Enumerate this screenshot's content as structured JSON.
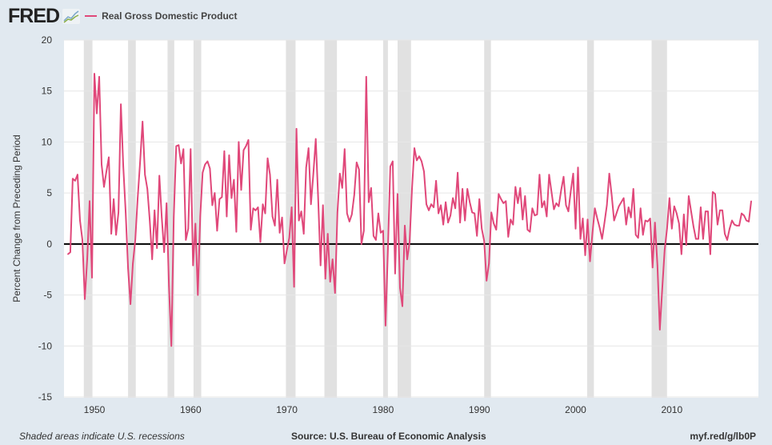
{
  "header": {
    "logo": "FRED",
    "legend": "Real Gross Domestic Product"
  },
  "footer": {
    "note": "Shaded areas indicate U.S. recessions",
    "source": "Source: U.S. Bureau of Economic Analysis",
    "link": "myf.red/g/lb0P"
  },
  "colors": {
    "series": "#e0487a",
    "recession": "#e1e1e1",
    "background": "#e1e9f0"
  },
  "chart_data": {
    "type": "line",
    "title": "Real Gross Domestic Product",
    "ylabel": "Percent Change from Preceding Period",
    "xlabel": "",
    "ylim": [
      -15,
      20
    ],
    "yticks": [
      -15,
      -10,
      -5,
      0,
      5,
      10,
      15,
      20
    ],
    "ytick_labels": [
      "-15",
      "-10",
      "-5",
      "0",
      "5",
      "10",
      "15",
      "20"
    ],
    "xticks": [
      1950,
      1960,
      1970,
      1980,
      1990,
      2000,
      2010
    ],
    "xtick_labels": [
      "1950",
      "1960",
      "1970",
      "1980",
      "1990",
      "2000",
      "2010"
    ],
    "xlim": [
      1947.0,
      2018.9
    ],
    "grid": true,
    "start": "1947Q2",
    "frequency": "quarterly",
    "recessions": [
      [
        1948.9,
        1949.8
      ],
      [
        1953.5,
        1954.3
      ],
      [
        1957.6,
        1958.3
      ],
      [
        1960.3,
        1961.1
      ],
      [
        1969.9,
        1970.9
      ],
      [
        1973.9,
        1975.2
      ],
      [
        1980.0,
        1980.5
      ],
      [
        1981.5,
        1982.9
      ],
      [
        1990.5,
        1991.2
      ],
      [
        2001.2,
        2001.9
      ],
      [
        2007.9,
        2009.5
      ]
    ],
    "values": [
      -1.0,
      -0.8,
      6.4,
      6.2,
      6.8,
      2.3,
      0.4,
      -5.4,
      -1.5,
      4.2,
      -3.3,
      16.7,
      12.8,
      16.4,
      7.8,
      5.6,
      7.1,
      8.5,
      1.0,
      4.4,
      0.9,
      3.1,
      13.7,
      7.6,
      3.1,
      -2.4,
      -5.9,
      -1.9,
      0.4,
      4.5,
      8.0,
      12.0,
      6.8,
      5.4,
      2.3,
      -1.5,
      3.3,
      -0.4,
      6.7,
      2.6,
      -0.8,
      4.0,
      -4.1,
      -10.0,
      2.6,
      9.6,
      9.7,
      7.9,
      9.3,
      0.4,
      1.5,
      9.3,
      -2.1,
      2.0,
      -5.0,
      2.7,
      7.0,
      7.8,
      8.1,
      7.4,
      3.8,
      5.0,
      1.3,
      4.4,
      4.6,
      9.1,
      2.7,
      8.7,
      4.5,
      6.3,
      1.2,
      10.0,
      5.3,
      9.2,
      9.6,
      10.2,
      1.4,
      3.5,
      3.3,
      3.6,
      0.2,
      3.9,
      3.0,
      8.4,
      6.8,
      2.7,
      1.8,
      6.3,
      1.1,
      2.6,
      -1.9,
      -0.6,
      0.6,
      3.6,
      -4.2,
      11.3,
      2.3,
      3.2,
      1.0,
      7.5,
      9.4,
      3.9,
      6.9,
      10.3,
      4.5,
      -2.1,
      3.8,
      -3.4,
      1.0,
      -3.7,
      -1.5,
      -4.8,
      3.1,
      6.9,
      5.5,
      9.3,
      3.0,
      2.2,
      2.9,
      4.8,
      8.0,
      7.3,
      0.0,
      1.3,
      16.4,
      4.1,
      5.5,
      0.8,
      0.4,
      3.0,
      1.1,
      1.3,
      -8.0,
      -0.5,
      7.6,
      8.1,
      -2.9,
      4.9,
      -4.3,
      -6.1,
      1.8,
      -1.5,
      0.2,
      5.4,
      9.4,
      8.2,
      8.6,
      8.1,
      7.1,
      3.9,
      3.3,
      3.9,
      3.6,
      6.2,
      3.0,
      3.8,
      1.9,
      4.1,
      2.1,
      2.8,
      4.5,
      3.5,
      7.0,
      2.1,
      5.4,
      2.3,
      5.4,
      4.1,
      3.1,
      3.0,
      0.8,
      4.4,
      1.5,
      0.3,
      -3.6,
      -1.9,
      3.1,
      2.0,
      1.4,
      4.9,
      4.4,
      4.0,
      4.2,
      0.7,
      2.4,
      1.9,
      5.6,
      4.0,
      5.5,
      2.4,
      4.7,
      1.4,
      1.2,
      3.5,
      2.8,
      2.9,
      6.8,
      3.6,
      4.2,
      2.7,
      6.8,
      5.1,
      3.4,
      4.0,
      3.7,
      5.3,
      6.6,
      3.8,
      3.2,
      5.2,
      6.9,
      1.5,
      7.5,
      0.5,
      2.5,
      -1.1,
      2.4,
      -1.7,
      1.1,
      3.5,
      2.5,
      1.6,
      0.5,
      2.1,
      3.8,
      6.9,
      4.8,
      2.3,
      3.0,
      3.7,
      4.1,
      4.5,
      1.9,
      3.6,
      2.6,
      5.4,
      0.9,
      0.6,
      3.5,
      0.9,
      2.3,
      2.2,
      2.5,
      -2.3,
      2.1,
      -2.1,
      -8.4,
      -4.4,
      -0.6,
      1.5,
      4.5,
      1.5,
      3.7,
      3.0,
      2.0,
      -1.0,
      2.9,
      -0.1,
      4.7,
      3.2,
      1.7,
      0.5,
      0.5,
      3.6,
      0.5,
      3.2,
      3.2,
      -1.0,
      5.1,
      4.9,
      1.9,
      3.3,
      3.3,
      1.0,
      0.4,
      1.5,
      2.3,
      1.9,
      1.8,
      1.8,
      3.0,
      2.8,
      2.3,
      2.2,
      4.2
    ]
  }
}
